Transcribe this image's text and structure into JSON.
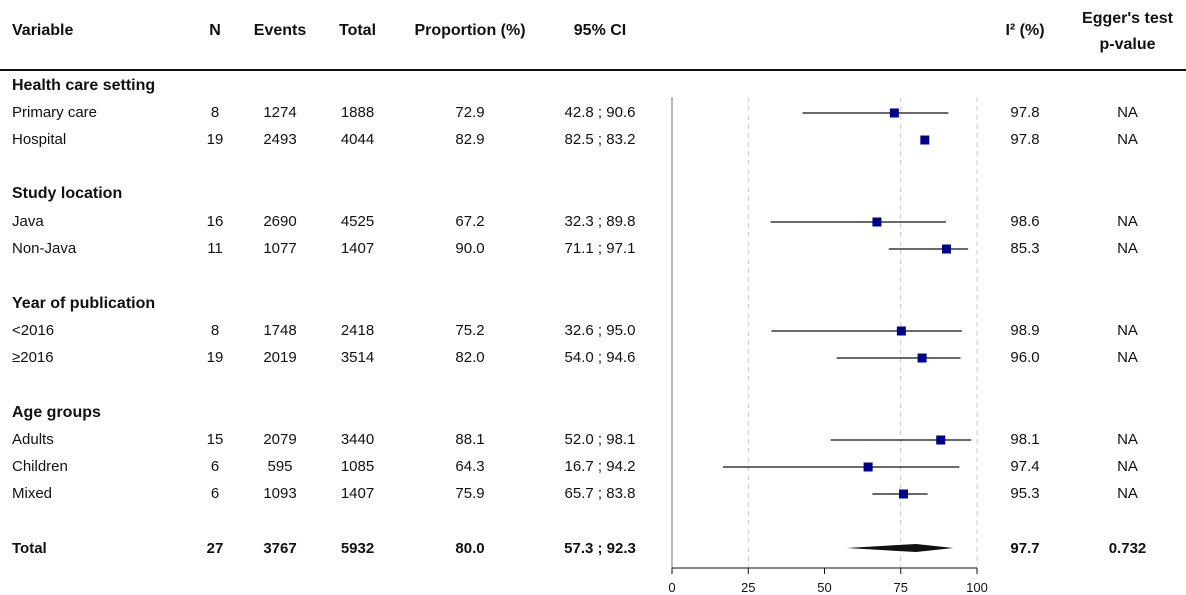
{
  "headers": {
    "variable": "Variable",
    "n": "N",
    "events": "Events",
    "total": "Total",
    "proportion": "Proportion (%)",
    "ci": "95% CI",
    "i2": "I² (%)",
    "egger_line1": "Egger's test",
    "egger_line2": "p-value"
  },
  "groups": [
    {
      "title": "Health care setting",
      "rows": [
        {
          "label": "Primary care",
          "n": "8",
          "events": "1274",
          "total": "1888",
          "prop": "72.9",
          "ci": "42.8 ; 90.6",
          "i2": "97.8",
          "egger": "NA"
        },
        {
          "label": "Hospital",
          "n": "19",
          "events": "2493",
          "total": "4044",
          "prop": "82.9",
          "ci": "82.5 ; 83.2",
          "i2": "97.8",
          "egger": "NA"
        }
      ]
    },
    {
      "title": "Study location",
      "rows": [
        {
          "label": "Java",
          "n": "16",
          "events": "2690",
          "total": "4525",
          "prop": "67.2",
          "ci": "32.3 ; 89.8",
          "i2": "98.6",
          "egger": "NA"
        },
        {
          "label": "Non-Java",
          "n": "11",
          "events": "1077",
          "total": "1407",
          "prop": "90.0",
          "ci": "71.1 ; 97.1",
          "i2": "85.3",
          "egger": "NA"
        }
      ]
    },
    {
      "title": "Year of publication",
      "rows": [
        {
          "label": "<2016",
          "n": "8",
          "events": "1748",
          "total": "2418",
          "prop": "75.2",
          "ci": "32.6 ; 95.0",
          "i2": "98.9",
          "egger": "NA"
        },
        {
          "label": "≥2016",
          "n": "19",
          "events": "2019",
          "total": "3514",
          "prop": "82.0",
          "ci": "54.0 ; 94.6",
          "i2": "96.0",
          "egger": "NA"
        }
      ]
    },
    {
      "title": "Age groups",
      "rows": [
        {
          "label": "Adults",
          "n": "15",
          "events": "2079",
          "total": "3440",
          "prop": "88.1",
          "ci": "52.0 ; 98.1",
          "i2": "98.1",
          "egger": "NA"
        },
        {
          "label": "Children",
          "n": "6",
          "events": "595",
          "total": "1085",
          "prop": "64.3",
          "ci": "16.7 ; 94.2",
          "i2": "97.4",
          "egger": "NA"
        },
        {
          "label": "Mixed",
          "n": "6",
          "events": "1093",
          "total": "1407",
          "prop": "75.9",
          "ci": "65.7 ; 83.8",
          "i2": "95.3",
          "egger": "NA"
        }
      ]
    }
  ],
  "total": {
    "label": "Total",
    "n": "27",
    "events": "3767",
    "total": "5932",
    "prop": "80.0",
    "ci": "57.3 ; 92.3",
    "i2": "97.7",
    "egger": "0.732"
  },
  "chart_data": {
    "type": "forest",
    "categories": [
      "Primary care",
      "Hospital",
      "Java",
      "Non-Java",
      "<2016",
      "≥2016",
      "Adults",
      "Children",
      "Mixed",
      "Total"
    ],
    "estimates": [
      72.9,
      82.9,
      67.2,
      90.0,
      75.2,
      82.0,
      88.1,
      64.3,
      75.9,
      80.0
    ],
    "ci_lower": [
      42.8,
      82.5,
      32.3,
      71.1,
      32.6,
      54.0,
      52.0,
      16.7,
      65.7,
      57.3
    ],
    "ci_upper": [
      90.6,
      83.2,
      89.8,
      97.1,
      95.0,
      94.6,
      98.1,
      94.2,
      83.8,
      92.3
    ],
    "xlim": [
      0,
      100
    ],
    "xticks": [
      0,
      25,
      50,
      75,
      100
    ],
    "gridlines": [
      25,
      75,
      100
    ],
    "grid": "dashed vertical",
    "marker_color": "#00008b"
  }
}
